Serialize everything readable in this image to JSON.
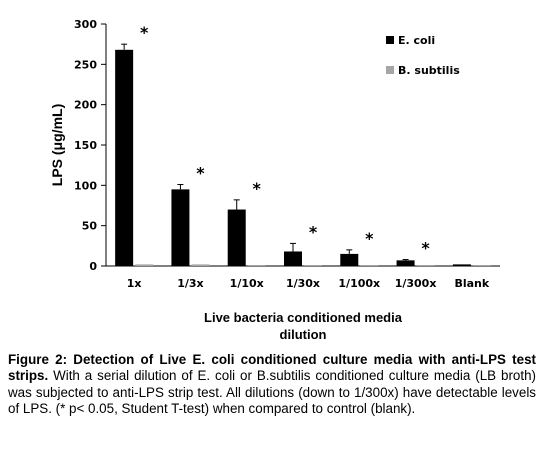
{
  "chart_data": {
    "type": "bar",
    "title": "",
    "ylabel": "LPS (μg/mL)",
    "xlabel_lines": [
      "Live bacteria conditioned media",
      "dilution"
    ],
    "ylim": [
      0,
      300
    ],
    "yticks": [
      0,
      50,
      100,
      150,
      200,
      250,
      300
    ],
    "categories": [
      "1x",
      "1/3x",
      "1/10x",
      "1/30x",
      "1/100x",
      "1/300x",
      "Blank"
    ],
    "series": [
      {
        "name": "E. coli",
        "color": "#000000",
        "values": [
          268,
          95,
          70,
          18,
          15,
          7,
          2
        ],
        "errors": [
          7,
          6,
          12,
          10,
          5,
          1,
          0
        ]
      },
      {
        "name": "B. subtilis",
        "color": "#a6a6a6",
        "values": [
          2,
          2,
          1,
          1,
          1,
          1,
          1
        ],
        "errors": [
          0,
          0,
          0,
          0,
          0,
          0,
          0
        ]
      }
    ],
    "significance": {
      "marker": "*",
      "categories": [
        "1x",
        "1/3x",
        "1/10x",
        "1/30x",
        "1/100x",
        "1/300x"
      ]
    },
    "legend_position": "top-right",
    "grid": false
  },
  "caption": {
    "bold": "Figure 2: Detection of Live E. coli conditioned culture media with anti-LPS test strips.",
    "text": " With a serial dilution of E. coli or B.subtilis conditioned culture media (LB broth) was subjected to anti-LPS strip test. All dilutions (down to 1/300x) have detectable levels of LPS. (* p< 0.05, Student T-test) when compared to control (blank)."
  }
}
